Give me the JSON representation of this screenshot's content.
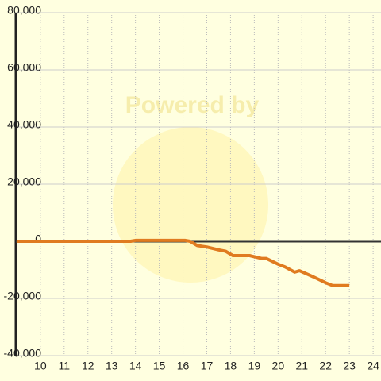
{
  "chart_data": {
    "type": "line",
    "watermark": "Powered by",
    "x": [
      9,
      13.8,
      14,
      16.1,
      16.3,
      16.6,
      17,
      17.5,
      17.8,
      18.1,
      18.8,
      19.3,
      19.5,
      20,
      20.3,
      20.7,
      20.9,
      21.5,
      22,
      22.3,
      23
    ],
    "series": [
      {
        "color": "#e07b20",
        "values": [
          0,
          0,
          300,
          300,
          0,
          -1500,
          -2000,
          -3000,
          -3500,
          -5000,
          -5000,
          -6000,
          -6000,
          -8000,
          -9000,
          -10800,
          -10300,
          -12500,
          -14500,
          -15500,
          -15500
        ]
      }
    ],
    "xlim": [
      8.97,
      24.33
    ],
    "xticks": [
      10,
      11,
      12,
      13,
      14,
      15,
      16,
      17,
      18,
      19,
      20,
      21,
      22,
      23,
      24
    ],
    "ylim": [
      -40000,
      80000
    ],
    "yticks": [
      {
        "value": -40000,
        "label": "-40,000"
      },
      {
        "value": -20000,
        "label": "-20,000"
      },
      0,
      {
        "value": 20000,
        "label": "20,000"
      },
      {
        "value": 40000,
        "label": "40,000"
      },
      {
        "value": 60000,
        "label": "60,000"
      },
      {
        "value": 80000,
        "label": "80,000"
      }
    ],
    "grid": true
  }
}
